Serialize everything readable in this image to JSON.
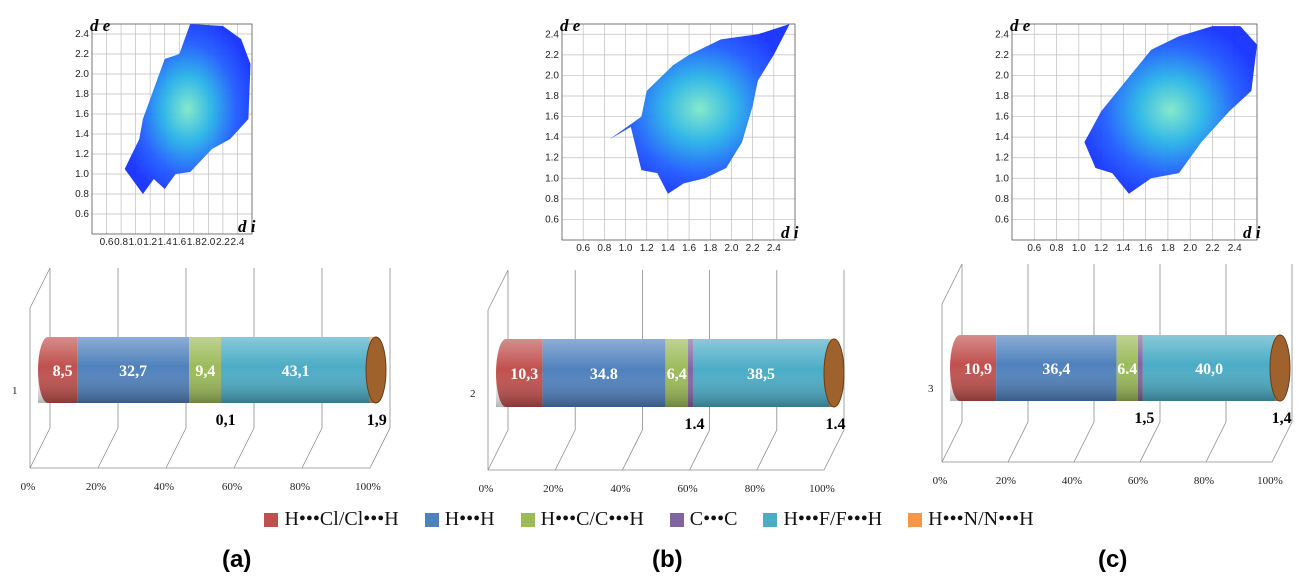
{
  "legend": {
    "items": [
      {
        "label": "H•••Cl/Cl•••H",
        "color": "#c0504d"
      },
      {
        "label": "H•••H",
        "color": "#4f81bd"
      },
      {
        "label": "H•••C/C•••H",
        "color": "#9bbb59"
      },
      {
        "label": "C•••C",
        "color": "#8064a2"
      },
      {
        "label": "H•••F/F•••H",
        "color": "#4bacc6"
      },
      {
        "label": "H•••N/N•••H",
        "color": "#f79646"
      }
    ]
  },
  "panels": [
    {
      "letter": "(a)"
    },
    {
      "letter": "(b)"
    },
    {
      "letter": "(c)"
    }
  ],
  "chart_data": [
    {
      "type": "scatter",
      "title": "",
      "xlabel": "d i",
      "ylabel": "d e",
      "xticks": [
        "0.6",
        "0.8",
        "1.0",
        "1.2",
        "1.4",
        "1.6",
        "1.8",
        "2.0",
        "2.2",
        "2.4"
      ],
      "yticks": [
        "0.6",
        "0.8",
        "1.0",
        "1.2",
        "1.4",
        "1.6",
        "1.8",
        "2.0",
        "2.2",
        "2.4"
      ],
      "xlim": [
        0.4,
        2.6
      ],
      "ylim": [
        0.4,
        2.5
      ],
      "grid": true
    },
    {
      "type": "scatter",
      "title": "",
      "xlabel": "d i",
      "ylabel": "d e",
      "xticks": [
        "0.6",
        "0.8",
        "1.0",
        "1.2",
        "1.4",
        "1.6",
        "1.8",
        "2.0",
        "2.2",
        "2.4"
      ],
      "yticks": [
        "0.6",
        "0.8",
        "1.0",
        "1.2",
        "1.4",
        "1.6",
        "1.8",
        "2.0",
        "2.2",
        "2.4"
      ],
      "xlim": [
        0.4,
        2.6
      ],
      "ylim": [
        0.4,
        2.5
      ],
      "grid": true
    },
    {
      "type": "scatter",
      "title": "",
      "xlabel": "d i",
      "ylabel": "d e",
      "xticks": [
        "0.6",
        "0.8",
        "1.0",
        "1.2",
        "1.4",
        "1.6",
        "1.8",
        "2.0",
        "2.2",
        "2.4"
      ],
      "yticks": [
        "0.6",
        "0.8",
        "1.0",
        "1.2",
        "1.4",
        "1.6",
        "1.8",
        "2.0",
        "2.2",
        "2.4"
      ],
      "xlim": [
        0.4,
        2.6
      ],
      "ylim": [
        0.4,
        2.5
      ],
      "grid": true
    },
    {
      "type": "bar",
      "orientation": "horizontal-stacked-100",
      "categories": [
        "1"
      ],
      "xticks": [
        "0%",
        "20%",
        "40%",
        "60%",
        "80%",
        "100%"
      ],
      "series": [
        {
          "name": "H•••Cl/Cl•••H",
          "values": [
            8.5
          ],
          "label": "8,5"
        },
        {
          "name": "H•••H",
          "values": [
            32.7
          ],
          "label": "32,7"
        },
        {
          "name": "H•••C/C•••H",
          "values": [
            9.4
          ],
          "label": "9,4"
        },
        {
          "name": "C•••C",
          "values": [
            0.1
          ],
          "label": "0,1"
        },
        {
          "name": "H•••F/F•••H",
          "values": [
            43.1
          ],
          "label": "43,1"
        },
        {
          "name": "H•••N/N•••H",
          "values": [
            1.9
          ],
          "label": "1,9"
        }
      ]
    },
    {
      "type": "bar",
      "orientation": "horizontal-stacked-100",
      "categories": [
        "2"
      ],
      "xticks": [
        "0%",
        "20%",
        "40%",
        "60%",
        "80%",
        "100%"
      ],
      "series": [
        {
          "name": "H•••Cl/Cl•••H",
          "values": [
            10.3
          ],
          "label": "10,3"
        },
        {
          "name": "H•••H",
          "values": [
            34.8
          ],
          "label": "34.8"
        },
        {
          "name": "H•••C/C•••H",
          "values": [
            6.4
          ],
          "label": "6,4"
        },
        {
          "name": "C•••C",
          "values": [
            1.4
          ],
          "label": "1.4"
        },
        {
          "name": "H•••F/F•••H",
          "values": [
            38.5
          ],
          "label": "38,5"
        },
        {
          "name": "H•••N/N•••H",
          "values": [
            1.4
          ],
          "label": "1.4"
        }
      ]
    },
    {
      "type": "bar",
      "orientation": "horizontal-stacked-100",
      "categories": [
        "3"
      ],
      "xticks": [
        "0%",
        "20%",
        "40%",
        "60%",
        "80%",
        "100%"
      ],
      "series": [
        {
          "name": "H•••Cl/Cl•••H",
          "values": [
            10.9
          ],
          "label": "10,9"
        },
        {
          "name": "H•••H",
          "values": [
            36.4
          ],
          "label": "36,4"
        },
        {
          "name": "H•••C/C•••H",
          "values": [
            6.4
          ],
          "label": "6.4"
        },
        {
          "name": "C•••C",
          "values": [
            1.5
          ],
          "label": "1,5"
        },
        {
          "name": "H•••F/F•••H",
          "values": [
            40.0
          ],
          "label": "40,0"
        },
        {
          "name": "H•••N/N•••H",
          "values": [
            1.4
          ],
          "label": "1,4"
        }
      ]
    }
  ]
}
